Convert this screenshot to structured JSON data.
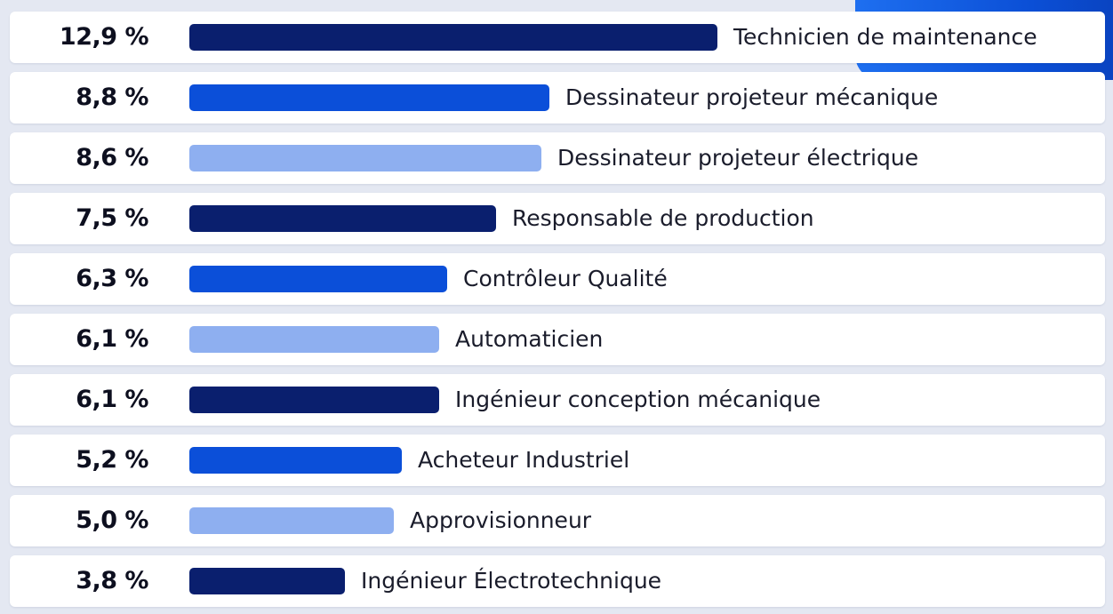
{
  "chart_data": {
    "type": "bar",
    "orientation": "horizontal",
    "categories": [
      "Technicien de maintenance",
      "Dessinateur projeteur mécanique",
      "Dessinateur projeteur électrique",
      "Responsable de production",
      "Contrôleur Qualité",
      "Automaticien",
      "Ingénieur conception mécanique",
      "Acheteur Industriel",
      "Approvisionneur",
      "Ingénieur Électrotechnique"
    ],
    "values": [
      12.9,
      8.8,
      8.6,
      7.5,
      6.3,
      6.1,
      6.1,
      5.2,
      5.0,
      3.8
    ],
    "value_labels": [
      "12,9 %",
      "8,8 %",
      "8,6 %",
      "7,5 %",
      "6,3 %",
      "6,1 %",
      "6,1 %",
      "5,2 %",
      "5,0 %",
      "3,8 %"
    ],
    "bar_colors": [
      "#0a1f6e",
      "#0b4fd9",
      "#8eaff0",
      "#0a1f6e",
      "#0b4fd9",
      "#8eaff0",
      "#0a1f6e",
      "#0b4fd9",
      "#8eaff0",
      "#0a1f6e"
    ],
    "xlim": [
      0,
      12.9
    ],
    "title": "",
    "xlabel": "",
    "ylabel": "",
    "grid": false,
    "legend": false
  },
  "colors": {
    "background": "#e4e8f2",
    "row_background": "#ffffff",
    "accent": "#1e6ff0"
  }
}
